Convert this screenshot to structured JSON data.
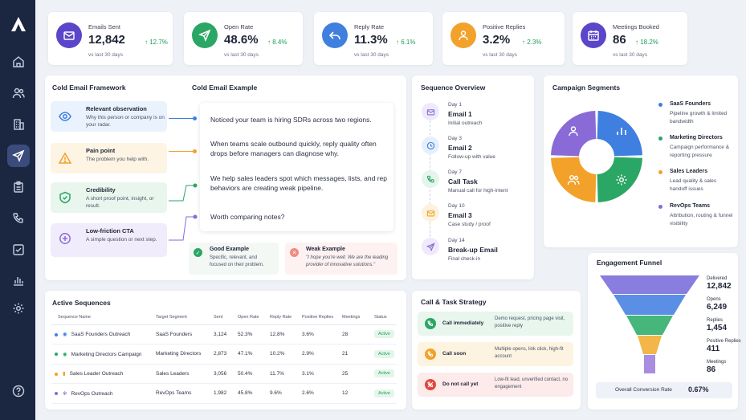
{
  "kpis": [
    {
      "label": "Emails Sent",
      "value": "12,842",
      "change": "↑ 12.7%",
      "sub": "vs last 30 days",
      "icon": "mail-icon",
      "color": "#5b45c9"
    },
    {
      "label": "Open Rate",
      "value": "48.6%",
      "change": "↑ 8.4%",
      "sub": "vs last 30 days",
      "icon": "send-icon",
      "color": "#2aa665"
    },
    {
      "label": "Reply Rate",
      "value": "11.3%",
      "change": "↑ 6.1%",
      "sub": "vs last 30 days",
      "icon": "reply-icon",
      "color": "#3f7fe0"
    },
    {
      "label": "Positive Replies",
      "value": "3.2%",
      "change": "↑ 2.3%",
      "sub": "vs last 30 days",
      "icon": "user-check-icon",
      "color": "#f2a12a"
    },
    {
      "label": "Meetings Booked",
      "value": "86",
      "change": "↑ 18.2%",
      "sub": "vs last 30 days",
      "icon": "calendar-icon",
      "color": "#5b45c9"
    }
  ],
  "framework": {
    "title": "Cold Email Framework",
    "items": [
      {
        "title": "Relevant observation",
        "desc": "Why this person or company is on your radar.",
        "color": "#3f7fe0",
        "bg": "#eaf2fd"
      },
      {
        "title": "Pain point",
        "desc": "The problem you help with.",
        "color": "#f2a12a",
        "bg": "#fdf4e4"
      },
      {
        "title": "Credibility",
        "desc": "A short proof point, insight, or result.",
        "color": "#2aa665",
        "bg": "#e8f6ee"
      },
      {
        "title": "Low-friction CTA",
        "desc": "A simple question or next step.",
        "color": "#8a6ad6",
        "bg": "#f1ecfb"
      }
    ]
  },
  "example": {
    "title": "Cold Email Example",
    "messages": [
      "Noticed your team is hiring SDRs across two regions.",
      "When teams scale outbound quickly, reply quality often drops before managers can diagnose why.",
      "We help sales leaders spot which messages, lists, and rep behaviors are creating weak pipeline.",
      "Worth comparing notes?"
    ],
    "good": {
      "title": "Good Example",
      "desc": "Specific, relevant, and focused on their problem."
    },
    "weak": {
      "title": "Weak Example",
      "desc": "\"I hope you're well. We are the leading provider of innovative solutions.\""
    }
  },
  "sequence": {
    "title": "Sequence Overview",
    "steps": [
      {
        "day": "Day 1",
        "title": "Email 1",
        "desc": "Initial outreach",
        "icon": "mail-icon",
        "color": "#8a6ad6",
        "bg": "#efeafb"
      },
      {
        "day": "Day 3",
        "title": "Email 2",
        "desc": "Follow-up with value",
        "icon": "clock-icon",
        "color": "#3f7fe0",
        "bg": "#e6effc"
      },
      {
        "day": "Day 7",
        "title": "Call Task",
        "desc": "Manual call for high-intent",
        "icon": "phone-icon",
        "color": "#2aa665",
        "bg": "#e5f5ec"
      },
      {
        "day": "Day 10",
        "title": "Email 3",
        "desc": "Case study / proof",
        "icon": "mail-icon",
        "color": "#f2a12a",
        "bg": "#fdf2df"
      },
      {
        "day": "Day 14",
        "title": "Break-up Email",
        "desc": "Final check-in",
        "icon": "send-icon",
        "color": "#8a6ad6",
        "bg": "#efeafb"
      }
    ]
  },
  "segments": {
    "title": "Campaign Segments",
    "items": [
      {
        "name": "SaaS Founders",
        "desc": "Pipeline growth & limited bandwidth",
        "color": "#3f7fe0",
        "share": 25
      },
      {
        "name": "Marketing Directors",
        "desc": "Campaign performance & reporting pressure",
        "color": "#2aa665",
        "share": 25
      },
      {
        "name": "Sales Leaders",
        "desc": "Lead quality & sales handoff issues",
        "color": "#f2a12a",
        "share": 25
      },
      {
        "name": "RevOps Teams",
        "desc": "Attribution, routing & funnel visibility",
        "color": "#8a6ad6",
        "share": 25
      }
    ]
  },
  "active": {
    "title": "Active Sequences",
    "headers": [
      "Sequence Name",
      "Target Segment",
      "Sent",
      "Open Rate",
      "Reply Rate",
      "Positive Replies",
      "Meetings",
      "Status"
    ],
    "rows": [
      {
        "dot": "#3f7fe0",
        "icon": "user-icon",
        "name": "SaaS Founders Outreach",
        "segment": "SaaS Founders",
        "sent": "3,124",
        "open": "52.3%",
        "reply": "12.8%",
        "pos": "3.6%",
        "meet": "28",
        "status": "Active"
      },
      {
        "dot": "#2aa665",
        "icon": "users-icon",
        "name": "Marketing Directors Campaign",
        "segment": "Marketing Directors",
        "sent": "2,873",
        "open": "47.1%",
        "reply": "10.2%",
        "pos": "2.9%",
        "meet": "21",
        "status": "Active"
      },
      {
        "dot": "#f2a12a",
        "icon": "chart-icon",
        "name": "Sales Leader Outreach",
        "segment": "Sales Leaders",
        "sent": "3,056",
        "open": "50.4%",
        "reply": "11.7%",
        "pos": "3.1%",
        "meet": "25",
        "status": "Active"
      },
      {
        "dot": "#8a6ad6",
        "icon": "gear-icon",
        "name": "RevOps Outreach",
        "segment": "RevOps Teams",
        "sent": "1,982",
        "open": "45.8%",
        "reply": "9.6%",
        "pos": "2.6%",
        "meet": "12",
        "status": "Active"
      }
    ]
  },
  "calls": {
    "title": "Call & Task Strategy",
    "rows": [
      {
        "label": "Call immediately",
        "desc": "Demo request, pricing page visit, positive reply",
        "color": "#2aa665",
        "bg": "#e8f6ee"
      },
      {
        "label": "Call soon",
        "desc": "Multiple opens, link click, high-fit account",
        "color": "#f2a12a",
        "bg": "#fdf3e1"
      },
      {
        "label": "Do not call yet",
        "desc": "Low-fit lead, unverified contact, no engagement",
        "color": "#e0483c",
        "bg": "#fcebea"
      }
    ]
  },
  "funnel": {
    "title": "Engagement Funnel",
    "stages": [
      {
        "label": "Delivered",
        "value": "12,842",
        "color": "#8a7de0"
      },
      {
        "label": "Opens",
        "value": "6,249",
        "color": "#5b8fe6"
      },
      {
        "label": "Replies",
        "value": "1,454",
        "color": "#46b67a"
      },
      {
        "label": "Positive Replies",
        "value": "411",
        "color": "#f2b649"
      },
      {
        "label": "Meetings",
        "value": "86",
        "color": "#a88de0"
      }
    ],
    "conversion_label": "Overall Conversion Rate",
    "conversion_value": "0.67%"
  }
}
